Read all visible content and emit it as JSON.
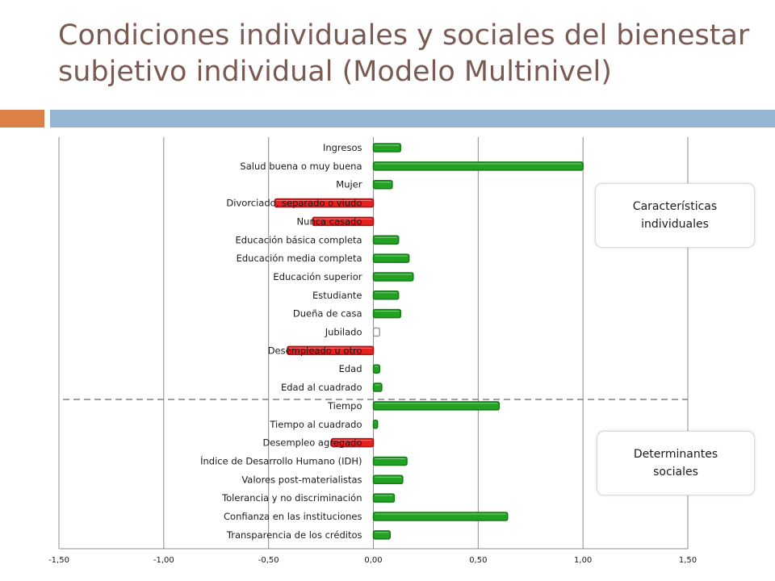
{
  "slide": {
    "title": "Condiciones individuales y sociales del bienestar subjetivo individual (Modelo Multinivel)"
  },
  "callouts": {
    "individual": "Características\nindividuales",
    "social": "Determinantes\nsociales"
  },
  "colors": {
    "positive": "#22a222",
    "negative": "#e82020",
    "not_significant": "#ffffff",
    "title": "#7a5a52",
    "accent_orange": "#dd8047",
    "accent_blue": "#94b6d2"
  },
  "chart_data": {
    "type": "bar",
    "orientation": "horizontal",
    "title": "",
    "xlabel": "",
    "ylabel": "",
    "xlim": [
      -1.5,
      1.5
    ],
    "x_ticks": [
      -1.5,
      -1.0,
      -0.5,
      0.0,
      0.5,
      1.0,
      1.5
    ],
    "x_tick_labels": [
      "-1,50",
      "-1,00",
      "-0,50",
      "0,00",
      "0,50",
      "1,00",
      "1,50"
    ],
    "grid": "vertical",
    "legend": "none",
    "separator_after_index": 13,
    "categories": [
      "Ingresos",
      "Salud buena o muy buena",
      "Mujer",
      "Divorciado, separado o viudo",
      "Nunca casado",
      "Educación básica completa",
      "Educación media completa",
      "Educación superior",
      "Estudiante",
      "Dueña de casa",
      "Jubilado",
      "Desempleado u otro",
      "Edad",
      "Edad al cuadrado",
      "Tiempo",
      "Tiempo al cuadrado",
      "Desempleo agregado",
      "Índice de Desarrollo Humano (IDH)",
      "Valores post-materialistas",
      "Tolerancia y no discriminación",
      "Confianza en las instituciones",
      "Transparencia de los créditos"
    ],
    "values": [
      0.13,
      1.0,
      0.09,
      -0.47,
      -0.29,
      0.12,
      0.17,
      0.19,
      0.12,
      0.13,
      0.03,
      -0.41,
      0.03,
      0.04,
      0.6,
      0.02,
      -0.2,
      0.16,
      0.14,
      0.1,
      0.64,
      0.08
    ],
    "significance": [
      "pos",
      "pos",
      "pos",
      "neg",
      "neg",
      "pos",
      "pos",
      "pos",
      "pos",
      "pos",
      "ns",
      "neg",
      "pos",
      "pos",
      "pos",
      "pos",
      "neg",
      "pos",
      "pos",
      "pos",
      "pos",
      "pos"
    ]
  }
}
